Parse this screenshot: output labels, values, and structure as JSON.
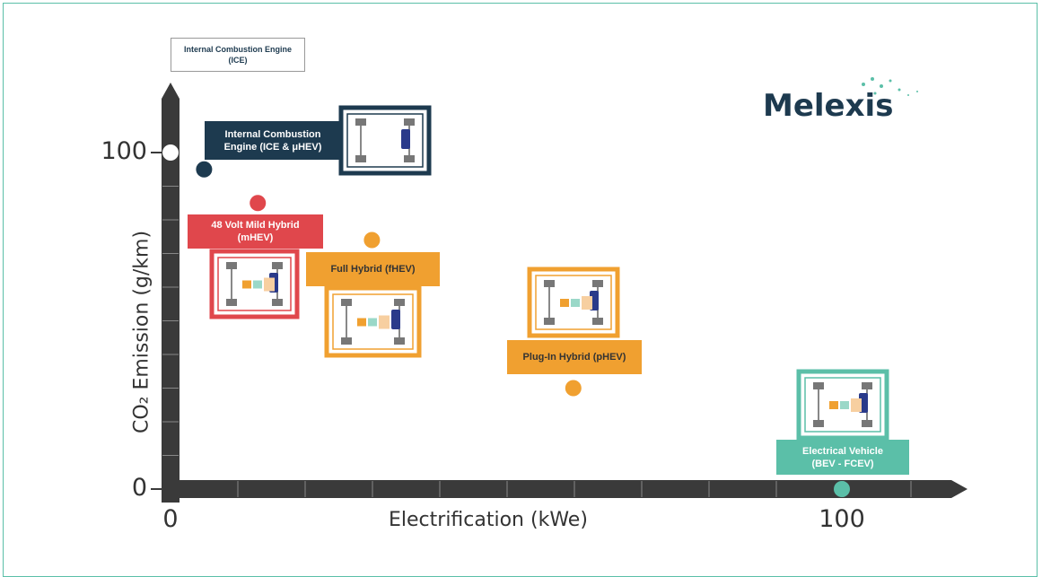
{
  "chart_data": {
    "type": "scatter",
    "x_label": "Electrification (kWe)",
    "y_label": "CO₂ Emission (g/km)",
    "logo": "Melexis",
    "xlim": [
      0,
      100
    ],
    "xticks": [
      0,
      100
    ],
    "ylim": [
      0,
      100
    ],
    "yticks": [
      0,
      100
    ],
    "series": [
      {
        "name": "Internal Combustion Engine (ICE)",
        "color": "#ffffff",
        "x": [
          0
        ],
        "values": [
          100
        ]
      },
      {
        "name": "Internal Combustion Engine (ICE & μHEV)",
        "color": "#1d3a4f",
        "x": [
          5
        ],
        "values": [
          95
        ]
      },
      {
        "name": "48 Volt Mild Hybrid (mHEV)",
        "color": "#e0474c",
        "x": [
          13
        ],
        "values": [
          85
        ]
      },
      {
        "name": "Full Hybrid (fHEV)",
        "color": "#f0a030",
        "x": [
          30
        ],
        "values": [
          74
        ]
      },
      {
        "name": "Plug-In Hybrid (pHEV)",
        "color": "#f0a030",
        "x": [
          60
        ],
        "values": [
          30
        ]
      },
      {
        "name": "Electrical Vehicle (BEV - FCEV)",
        "color": "#5bbfa8",
        "x": [
          100
        ],
        "values": [
          0
        ]
      }
    ]
  }
}
